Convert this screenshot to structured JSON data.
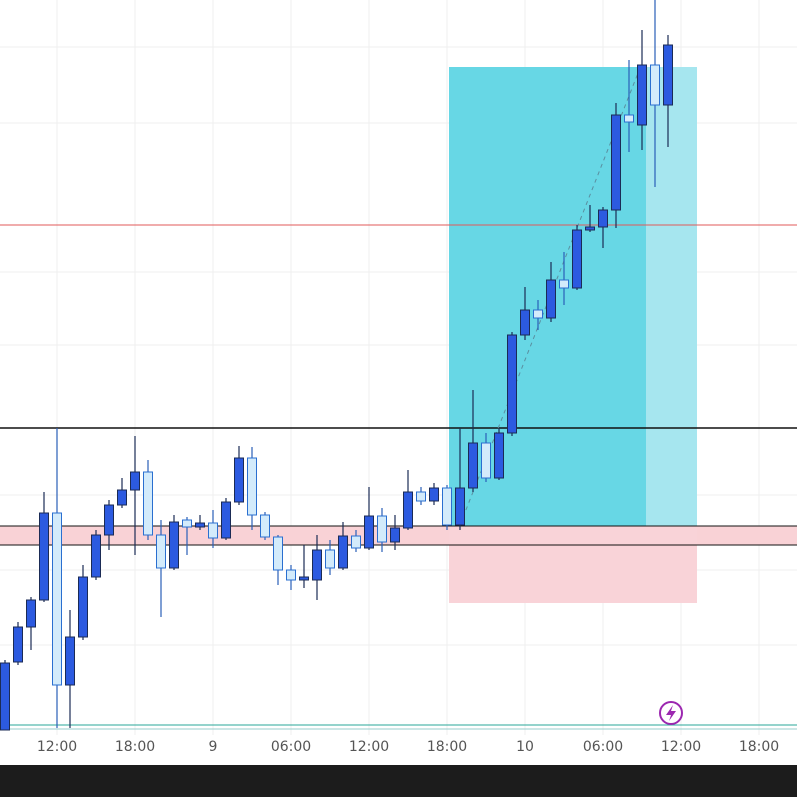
{
  "chart_data": {
    "type": "candlestick",
    "categories": [
      null,
      null,
      null,
      null,
      "12:00",
      null,
      null,
      null,
      null,
      null,
      "18:00",
      null,
      null,
      null,
      null,
      null,
      "9",
      null,
      null,
      null,
      null,
      null,
      "06:00",
      null,
      null,
      null,
      null,
      null,
      "12:00",
      null,
      null,
      null,
      null,
      null,
      "18:00",
      null,
      null,
      null,
      null,
      null,
      "10",
      null,
      null,
      null,
      null,
      null,
      "06:00",
      null,
      null,
      null,
      null,
      null,
      "12:00",
      null,
      null,
      null,
      null,
      null,
      "18:00"
    ],
    "open": [
      5,
      73,
      108,
      135,
      222,
      50,
      98,
      158,
      200,
      230,
      245,
      263,
      200,
      167,
      215,
      208,
      212,
      197,
      233,
      277,
      220,
      198,
      165,
      155,
      155,
      185,
      167,
      199,
      187,
      219,
      193,
      207,
      243,
      234,
      247,
      210,
      247,
      292,
      257,
      302,
      400,
      425,
      417,
      455,
      447,
      505,
      508,
      525,
      620,
      610,
      670,
      630,
      null,
      null,
      null,
      null,
      null,
      null,
      null
    ],
    "high": [
      75,
      113,
      138,
      243,
      307,
      125,
      170,
      205,
      235,
      257,
      299,
      275,
      215,
      220,
      218,
      220,
      225,
      237,
      289,
      288,
      223,
      200,
      170,
      190,
      200,
      195,
      213,
      205,
      248,
      227,
      220,
      265,
      248,
      252,
      250,
      307,
      345,
      302,
      307,
      403,
      448,
      435,
      473,
      483,
      510,
      530,
      528,
      632,
      675,
      705,
      735,
      700,
      null,
      null,
      null,
      null,
      null,
      null,
      null
    ],
    "low": [
      5,
      70,
      85,
      133,
      7,
      7,
      95,
      155,
      185,
      227,
      180,
      195,
      118,
      165,
      180,
      205,
      187,
      195,
      230,
      205,
      195,
      150,
      145,
      147,
      135,
      160,
      165,
      183,
      185,
      183,
      185,
      205,
      230,
      230,
      205,
      205,
      243,
      253,
      255,
      299,
      395,
      405,
      413,
      430,
      445,
      503,
      487,
      507,
      583,
      585,
      548,
      588,
      null,
      null,
      null,
      null,
      null,
      null,
      null
    ],
    "close": [
      72,
      108,
      135,
      222,
      50,
      98,
      158,
      200,
      230,
      245,
      263,
      200,
      167,
      213,
      208,
      212,
      197,
      233,
      277,
      220,
      198,
      165,
      155,
      158,
      185,
      167,
      199,
      187,
      219,
      193,
      207,
      243,
      234,
      247,
      210,
      247,
      292,
      257,
      302,
      400,
      425,
      417,
      455,
      447,
      505,
      508,
      525,
      620,
      613,
      670,
      630,
      690,
      null,
      null,
      null,
      null,
      null,
      null,
      null
    ],
    "ylim": [
      0,
      735
    ],
    "up_color": "#2c5ae0",
    "down_color": "#d3ebfb",
    "grid": true
  }
}
